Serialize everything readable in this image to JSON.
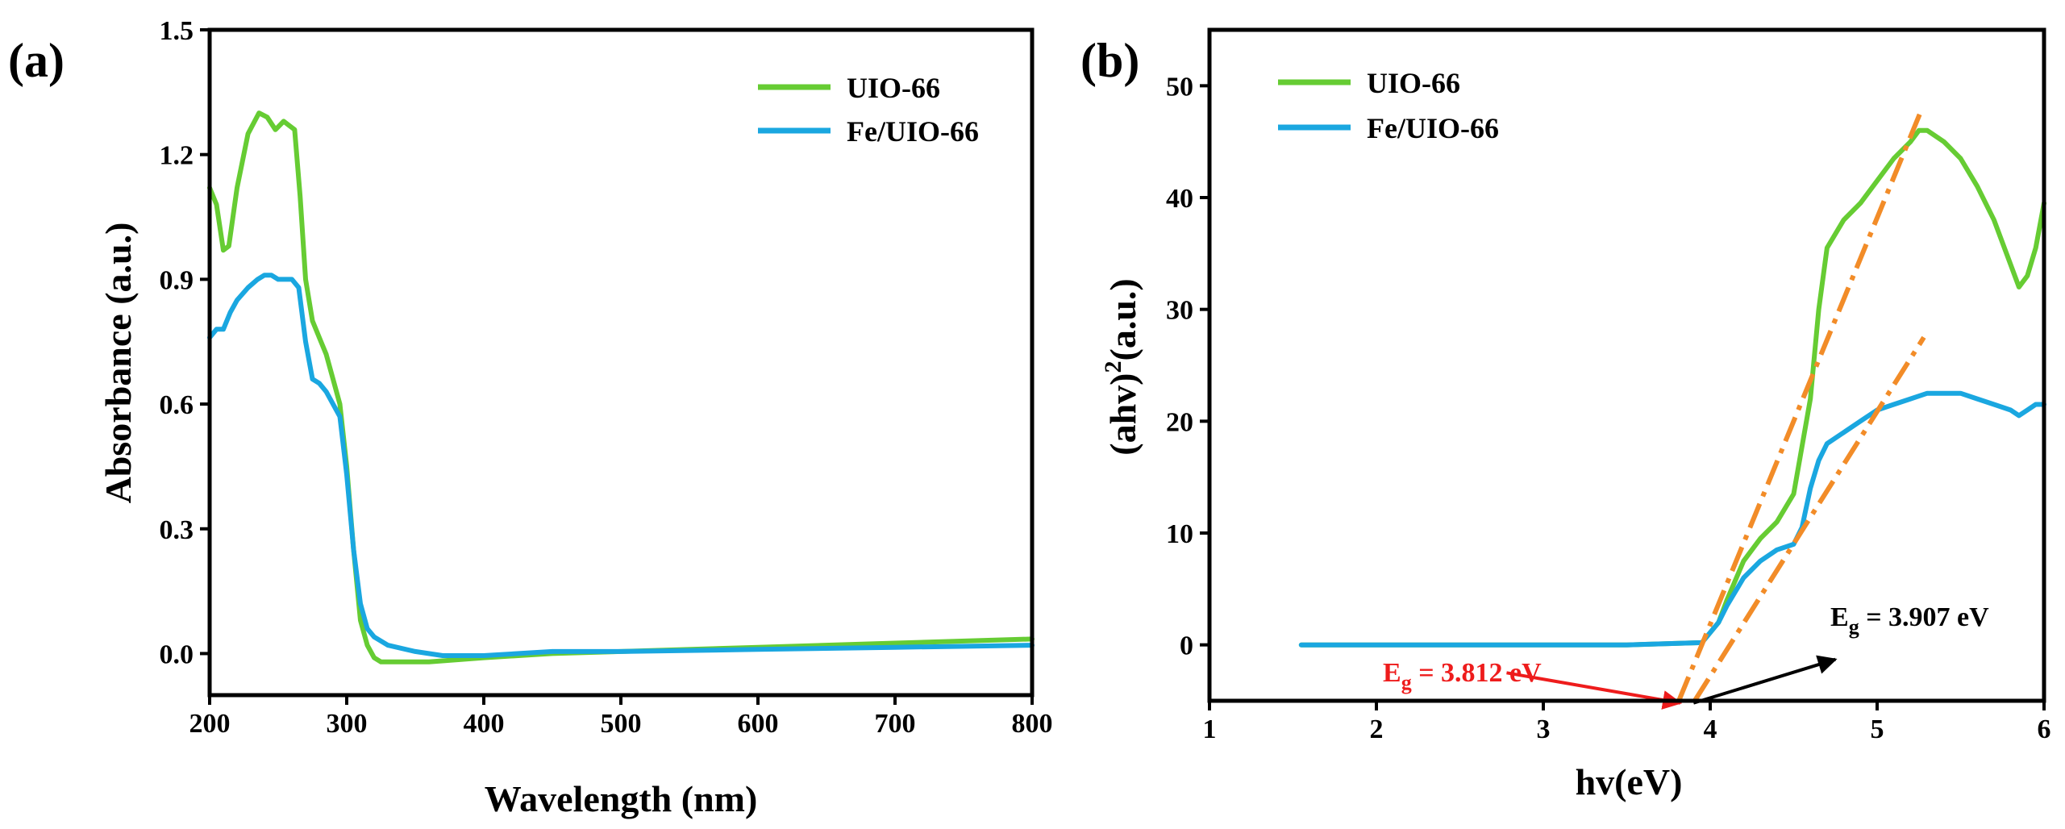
{
  "figure": {
    "colors": {
      "uio66": "#66cc33",
      "fe_uio66": "#1aa7e0",
      "fit": "#f28c28",
      "arrow_red": "#ee1c1c",
      "arrow_black": "#000000",
      "label_red": "#ee1c1c"
    }
  },
  "chart_data": [
    {
      "panel": "(a)",
      "type": "line",
      "xlabel": "Wavelength (nm)",
      "ylabel": "Absorbance (a.u.)",
      "xlim": [
        200,
        800
      ],
      "ylim": [
        -0.1,
        1.5
      ],
      "xticks": [
        200,
        300,
        400,
        500,
        600,
        700,
        800
      ],
      "xtick_labels": [
        "200",
        "300",
        "400",
        "500",
        "600",
        "700",
        "800"
      ],
      "yticks": [
        0.0,
        0.3,
        0.6,
        0.9,
        1.2,
        1.5
      ],
      "ytick_labels": [
        "0.0",
        "0.3",
        "0.6",
        "0.9",
        "1.2",
        "1.5"
      ],
      "legend_position": "top-right",
      "series": [
        {
          "name": "UIO-66",
          "x": [
            200,
            205,
            210,
            214,
            220,
            228,
            236,
            242,
            248,
            254,
            258,
            262,
            266,
            270,
            275,
            280,
            285,
            290,
            295,
            300,
            305,
            310,
            315,
            320,
            325,
            330,
            340,
            360,
            400,
            450,
            500,
            600,
            700,
            800
          ],
          "y": [
            1.12,
            1.08,
            0.97,
            0.98,
            1.12,
            1.25,
            1.3,
            1.29,
            1.26,
            1.28,
            1.27,
            1.26,
            1.1,
            0.9,
            0.8,
            0.76,
            0.72,
            0.66,
            0.6,
            0.45,
            0.25,
            0.08,
            0.02,
            -0.01,
            -0.02,
            -0.02,
            -0.02,
            -0.02,
            -0.01,
            0.0,
            0.005,
            0.015,
            0.025,
            0.035
          ]
        },
        {
          "name": "Fe/UIO-66",
          "x": [
            200,
            205,
            210,
            215,
            220,
            228,
            235,
            240,
            245,
            250,
            255,
            260,
            265,
            270,
            275,
            280,
            285,
            290,
            295,
            300,
            305,
            310,
            315,
            320,
            330,
            350,
            370,
            400,
            450,
            500,
            600,
            700,
            800
          ],
          "y": [
            0.76,
            0.78,
            0.78,
            0.82,
            0.85,
            0.88,
            0.9,
            0.91,
            0.91,
            0.9,
            0.9,
            0.9,
            0.88,
            0.75,
            0.66,
            0.65,
            0.63,
            0.6,
            0.57,
            0.43,
            0.25,
            0.12,
            0.06,
            0.04,
            0.02,
            0.005,
            -0.005,
            -0.005,
            0.005,
            0.005,
            0.01,
            0.015,
            0.02
          ]
        }
      ]
    },
    {
      "panel": "(b)",
      "type": "line",
      "xlabel": "hv(eV)",
      "ylabel_prefix": "(ahv)",
      "ylabel_sup": "2",
      "ylabel_suffix": "(a.u.)",
      "xlim": [
        1,
        6
      ],
      "ylim": [
        -5,
        55
      ],
      "xticks": [
        1,
        2,
        3,
        4,
        5,
        6
      ],
      "xtick_labels": [
        "1",
        "2",
        "3",
        "4",
        "5",
        "6"
      ],
      "yticks": [
        0,
        10,
        20,
        30,
        40,
        50
      ],
      "ytick_labels": [
        "0",
        "10",
        "20",
        "30",
        "40",
        "50"
      ],
      "legend_position": "top-left",
      "series": [
        {
          "name": "UIO-66",
          "x": [
            1.55,
            2.0,
            3.0,
            3.5,
            3.95,
            4.05,
            4.1,
            4.2,
            4.3,
            4.4,
            4.5,
            4.6,
            4.65,
            4.7,
            4.8,
            4.9,
            5.0,
            5.1,
            5.2,
            5.25,
            5.3,
            5.4,
            5.5,
            5.6,
            5.7,
            5.8,
            5.85,
            5.9,
            5.95,
            6.0
          ],
          "y": [
            0,
            0,
            0,
            0,
            0.2,
            2.0,
            4.0,
            7.5,
            9.5,
            11.0,
            13.5,
            22.0,
            30.0,
            35.5,
            38.0,
            39.5,
            41.5,
            43.5,
            45.0,
            46.0,
            46.0,
            45.0,
            43.5,
            41.0,
            38.0,
            34.0,
            32.0,
            33.0,
            35.5,
            39.5
          ]
        },
        {
          "name": "Fe/UIO-66",
          "x": [
            1.55,
            2.0,
            3.0,
            3.5,
            3.95,
            4.05,
            4.1,
            4.2,
            4.3,
            4.4,
            4.5,
            4.55,
            4.6,
            4.65,
            4.7,
            4.8,
            4.9,
            5.0,
            5.1,
            5.2,
            5.3,
            5.4,
            5.5,
            5.6,
            5.7,
            5.8,
            5.85,
            5.9,
            5.95,
            6.0
          ],
          "y": [
            0,
            0,
            0,
            0,
            0.2,
            2.0,
            3.5,
            6.0,
            7.5,
            8.5,
            9.0,
            10.5,
            14.0,
            16.5,
            18.0,
            19.0,
            20.0,
            21.0,
            21.5,
            22.0,
            22.5,
            22.5,
            22.5,
            22.0,
            21.5,
            21.0,
            20.5,
            21.0,
            21.5,
            21.5
          ]
        }
      ],
      "fit_lines": [
        {
          "name": "UIO-66 tangent",
          "x": [
            3.812,
            5.27
          ],
          "y": [
            -5,
            48
          ]
        },
        {
          "name": "Fe/UIO-66 tangent",
          "x": [
            3.907,
            5.28
          ],
          "y": [
            -5,
            27.5
          ]
        }
      ],
      "annotations": [
        {
          "id": "eg_uio66",
          "prefix": "E",
          "sub": "g",
          "suffix": " = 3.812 eV",
          "color": "red",
          "arrow_from": [
            2.78,
            -2.5
          ],
          "arrow_to": [
            3.82,
            -5.2
          ]
        },
        {
          "id": "eg_fe_uio66",
          "prefix": "E",
          "sub": "g",
          "suffix": " = 3.907 eV",
          "color": "black",
          "arrow_from": [
            3.9,
            -5.2
          ],
          "arrow_to": [
            4.75,
            -1.3
          ]
        }
      ]
    }
  ]
}
